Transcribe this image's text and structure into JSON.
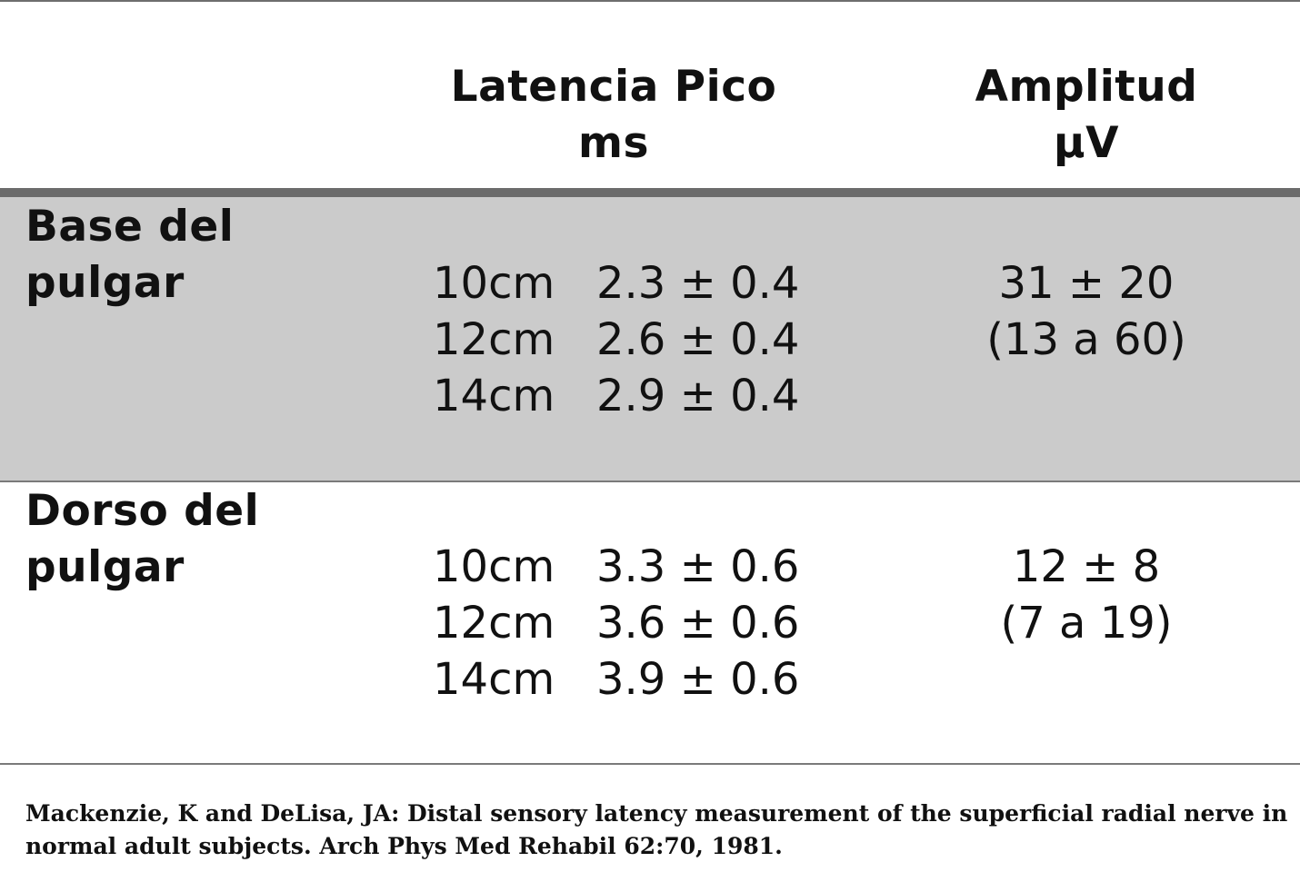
{
  "table": {
    "headers": {
      "latency": [
        "Latencia Pico",
        "ms"
      ],
      "amplitude": [
        "Amplitud",
        "µV"
      ]
    },
    "rows": [
      {
        "site": [
          "Base del",
          "pulgar"
        ],
        "latencies": [
          {
            "distance": "10cm",
            "value": "2.3 ± 0.4"
          },
          {
            "distance": "12cm",
            "value": "2.6 ± 0.4"
          },
          {
            "distance": "14cm",
            "value": "2.9 ± 0.4"
          }
        ],
        "amplitude": [
          "31 ± 20",
          "(13 a 60)"
        ]
      },
      {
        "site": [
          "Dorso del",
          "pulgar"
        ],
        "latencies": [
          {
            "distance": "10cm",
            "value": "3.3 ± 0.6"
          },
          {
            "distance": "12cm",
            "value": "3.6 ± 0.6"
          },
          {
            "distance": "14cm",
            "value": "3.9 ± 0.6"
          }
        ],
        "amplitude": [
          "12 ± 8",
          "(7 a 19)"
        ]
      }
    ]
  },
  "reference": [
    "Mackenzie, K and DeLisa, JA: Distal sensory latency measurement of the superficial radial nerve in",
    "normal adult subjects. Arch Phys Med Rehabil 62:70, 1981."
  ],
  "colors": {
    "band": "#cbcbcb",
    "rule": "#6b6b6b",
    "text": "#111111"
  }
}
